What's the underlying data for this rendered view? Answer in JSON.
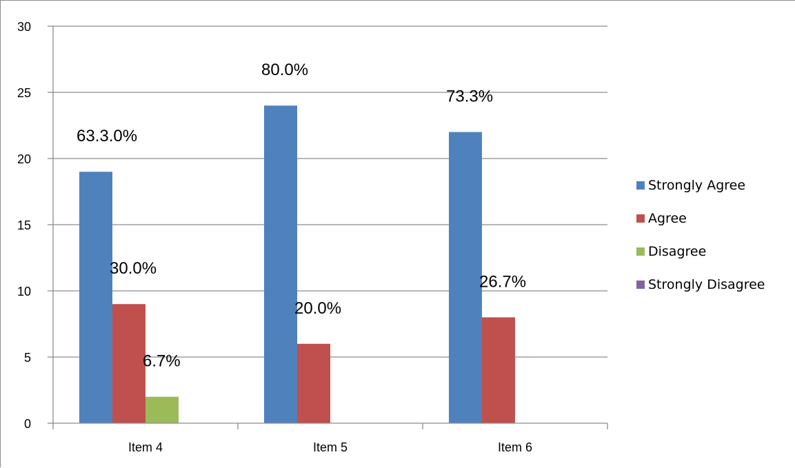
{
  "chart_data": {
    "type": "bar",
    "categories": [
      "Item 4",
      "Item 5",
      "Item 6"
    ],
    "series": [
      {
        "name": "Strongly Agree",
        "values": [
          19,
          24,
          22
        ],
        "color": "#4F81BD",
        "labels": [
          "63.3.0%",
          "80.0%",
          "73.3%"
        ]
      },
      {
        "name": "Agree",
        "values": [
          9,
          6,
          8
        ],
        "color": "#C0504D",
        "labels": [
          "30.0%",
          "20.0%",
          "26.7%"
        ]
      },
      {
        "name": "Disagree",
        "values": [
          2,
          0,
          0
        ],
        "color": "#9BBB59",
        "labels": [
          "6.7%",
          "",
          ""
        ]
      },
      {
        "name": "Strongly Disagree",
        "values": [
          0,
          0,
          0
        ],
        "color": "#8064A2",
        "labels": [
          "",
          "",
          ""
        ]
      }
    ],
    "title": "",
    "xlabel": "",
    "ylabel": "",
    "ylim": [
      0,
      30
    ],
    "yticks": [
      "0",
      "5",
      "10",
      "15",
      "20",
      "25",
      "30"
    ],
    "grid": true,
    "legend": "right"
  }
}
